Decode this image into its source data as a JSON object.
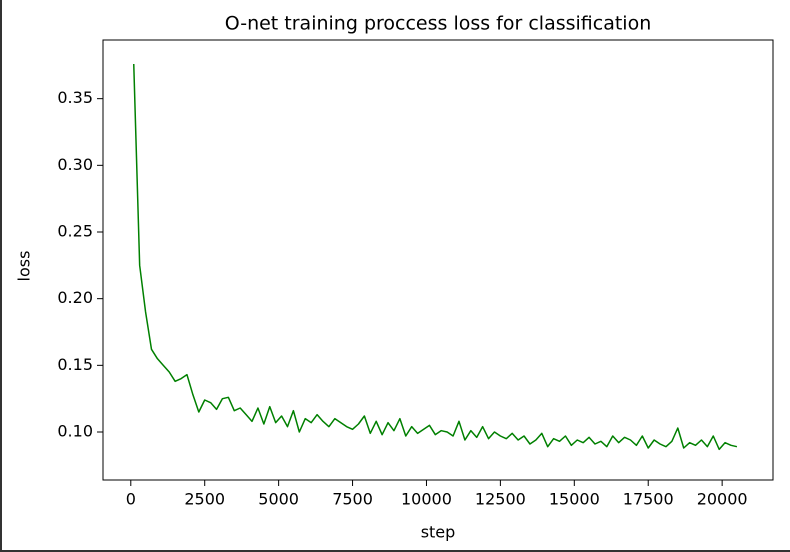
{
  "chart_data": {
    "type": "line",
    "title": "O-net training proccess loss for classification",
    "x_label": "step",
    "y_label": "loss",
    "x": [
      100,
      300,
      500,
      700,
      900,
      1100,
      1300,
      1500,
      1700,
      1900,
      2100,
      2300,
      2500,
      2700,
      2900,
      3100,
      3300,
      3500,
      3700,
      3900,
      4100,
      4300,
      4500,
      4700,
      4900,
      5100,
      5300,
      5500,
      5700,
      5900,
      6100,
      6300,
      6500,
      6700,
      6900,
      7100,
      7300,
      7500,
      7700,
      7900,
      8100,
      8300,
      8500,
      8700,
      8900,
      9100,
      9300,
      9500,
      9700,
      9900,
      10100,
      10300,
      10500,
      10700,
      10900,
      11100,
      11300,
      11500,
      11700,
      11900,
      12100,
      12300,
      12500,
      12700,
      12900,
      13100,
      13300,
      13500,
      13700,
      13900,
      14100,
      14300,
      14500,
      14700,
      14900,
      15100,
      15300,
      15500,
      15700,
      15900,
      16100,
      16300,
      16500,
      16700,
      16900,
      17100,
      17300,
      17500,
      17700,
      17900,
      18100,
      18300,
      18500,
      18700,
      18900,
      19100,
      19300,
      19500,
      19700,
      19900,
      20100,
      20300,
      20500
    ],
    "series": [
      {
        "color": "#008000",
        "values": [
          0.376,
          0.225,
          0.19,
          0.162,
          0.155,
          0.15,
          0.145,
          0.138,
          0.14,
          0.143,
          0.128,
          0.115,
          0.124,
          0.122,
          0.117,
          0.125,
          0.126,
          0.116,
          0.118,
          0.113,
          0.108,
          0.118,
          0.106,
          0.119,
          0.107,
          0.112,
          0.104,
          0.116,
          0.1,
          0.11,
          0.107,
          0.113,
          0.108,
          0.104,
          0.11,
          0.107,
          0.104,
          0.102,
          0.106,
          0.112,
          0.099,
          0.108,
          0.098,
          0.107,
          0.101,
          0.11,
          0.097,
          0.104,
          0.099,
          0.102,
          0.105,
          0.098,
          0.101,
          0.1,
          0.097,
          0.108,
          0.094,
          0.101,
          0.096,
          0.104,
          0.095,
          0.1,
          0.097,
          0.095,
          0.099,
          0.094,
          0.097,
          0.091,
          0.094,
          0.099,
          0.089,
          0.095,
          0.093,
          0.097,
          0.09,
          0.094,
          0.092,
          0.096,
          0.091,
          0.093,
          0.089,
          0.097,
          0.092,
          0.096,
          0.094,
          0.09,
          0.097,
          0.088,
          0.094,
          0.091,
          0.089,
          0.093,
          0.103,
          0.088,
          0.092,
          0.09,
          0.094,
          0.089,
          0.097,
          0.087,
          0.092,
          0.09,
          0.089
        ]
      }
    ],
    "xlim": [
      -940,
      21720
    ],
    "ylim": [
      0.064,
      0.394
    ],
    "xticks": [
      0,
      2500,
      5000,
      7500,
      10000,
      12500,
      15000,
      17500,
      20000
    ],
    "yticks": [
      {
        "value": 0.1,
        "label": "0.10"
      },
      0.15,
      {
        "value": 0.2,
        "label": "0.20"
      },
      0.25,
      {
        "value": 0.3,
        "label": "0.30"
      },
      0.35
    ],
    "grid": false
  }
}
